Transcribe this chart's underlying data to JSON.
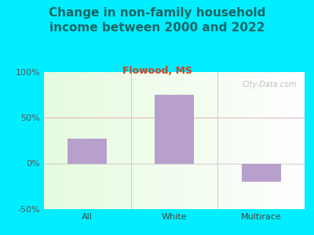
{
  "title": "Change in non-family household\nincome between 2000 and 2022",
  "subtitle": "Flowood, MS",
  "categories": [
    "All",
    "White",
    "Multirace"
  ],
  "values": [
    27,
    75,
    -20
  ],
  "bar_color": "#b8a0cc",
  "background_outer": "#00eeff",
  "title_color": "#1a6666",
  "subtitle_color": "#cc4422",
  "ylim": [
    -50,
    100
  ],
  "yticks": [
    -50,
    0,
    50,
    100
  ],
  "ytick_labels": [
    "-50%",
    "0%",
    "50%",
    "100%"
  ],
  "watermark": "City-Data.com",
  "title_fontsize": 11,
  "subtitle_fontsize": 9,
  "tick_fontsize": 8
}
